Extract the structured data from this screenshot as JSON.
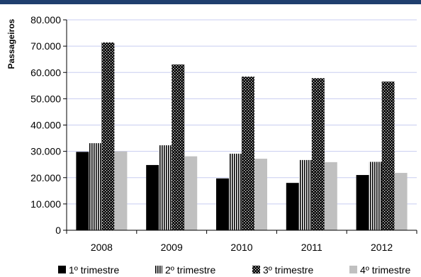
{
  "chart_data": {
    "type": "bar",
    "categories": [
      "2008",
      "2009",
      "2010",
      "2011",
      "2012"
    ],
    "series": [
      {
        "name": "1º trimestre",
        "values": [
          29800,
          24800,
          19700,
          18000,
          21000
        ],
        "color": "#000000",
        "pattern": "solid-black"
      },
      {
        "name": "2º trimestre",
        "values": [
          33100,
          32300,
          29100,
          26700,
          26000
        ],
        "color": "#555555",
        "pattern": "vertical-stripes"
      },
      {
        "name": "3º trimestre",
        "values": [
          71400,
          63000,
          58400,
          57800,
          56500
        ],
        "color": "#222222",
        "pattern": "checker-dots"
      },
      {
        "name": "4º trimestre",
        "values": [
          30000,
          28100,
          27200,
          25900,
          21800
        ],
        "color": "#c0c0c0",
        "pattern": "solid-gray"
      }
    ],
    "ylabel": "Passageiros",
    "xlabel": "",
    "ylim": [
      0,
      80000
    ],
    "yticks": [
      "0",
      "10.000",
      "20.000",
      "30.000",
      "40.000",
      "50.000",
      "60.000",
      "70.000",
      "80.000"
    ],
    "grid": true,
    "legend_position": "bottom"
  },
  "header_bar_color": "#1f3f6e"
}
